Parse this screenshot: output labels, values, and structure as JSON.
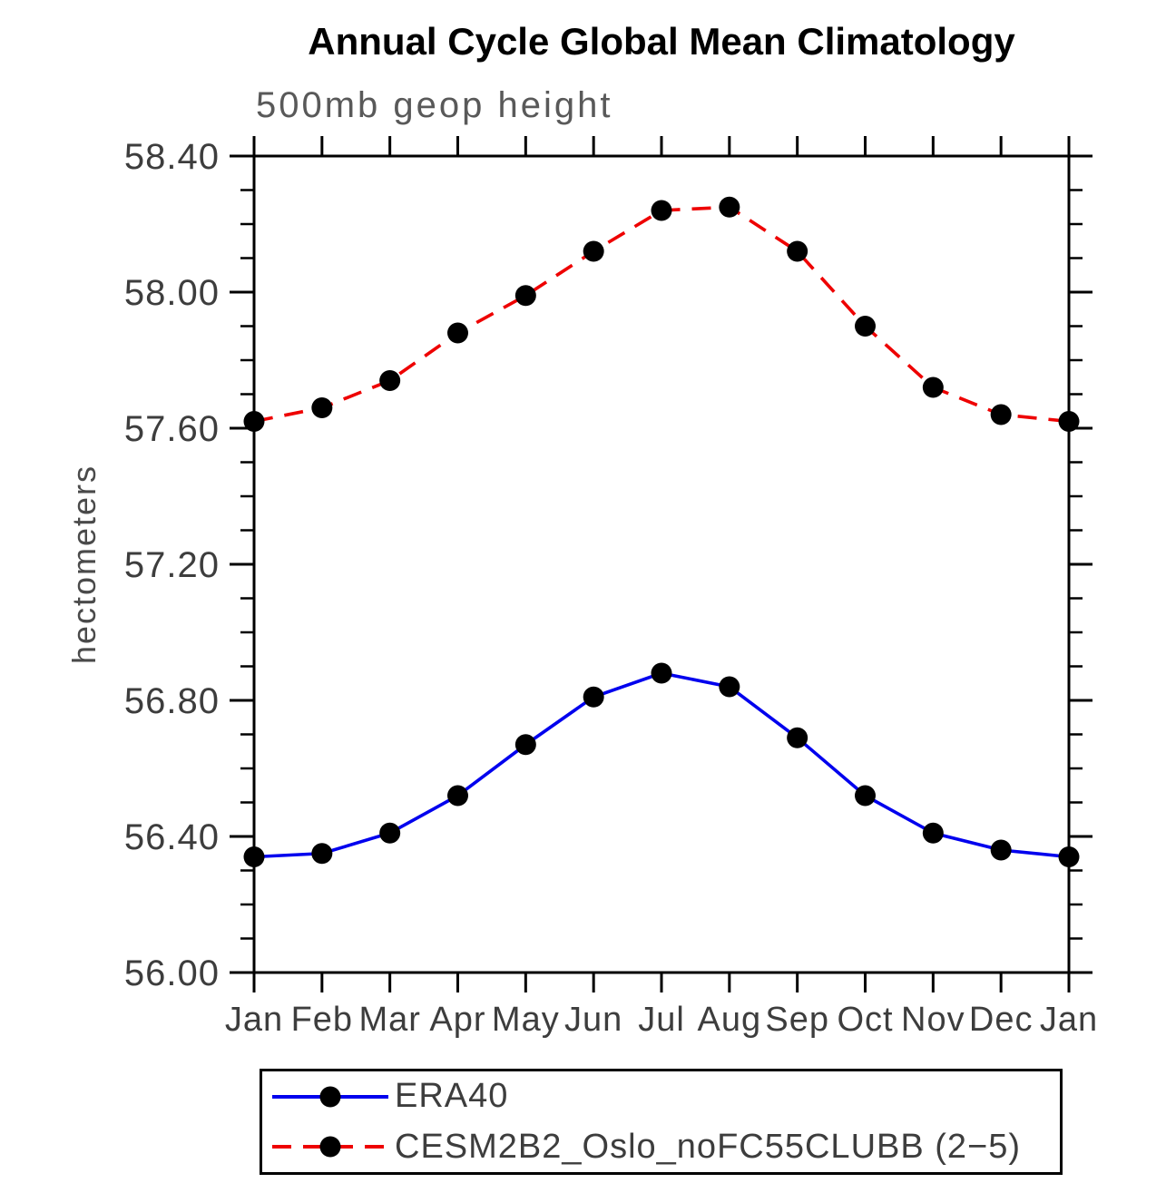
{
  "chart_data": {
    "type": "line",
    "title": "Annual Cycle Global Mean Climatology",
    "subtitle": "500mb geop height",
    "ylabel": "hectometers",
    "xlabel": "",
    "categories": [
      "Jan",
      "Feb",
      "Mar",
      "Apr",
      "May",
      "Jun",
      "Jul",
      "Aug",
      "Sep",
      "Oct",
      "Nov",
      "Dec",
      "Jan"
    ],
    "ylim": [
      56.0,
      58.4
    ],
    "ytick_major_interval": 0.4,
    "ytick_minor_interval": 0.1,
    "ytick_labels": [
      "56.00",
      "56.40",
      "56.80",
      "57.20",
      "57.60",
      "58.00",
      "58.40"
    ],
    "grid": "off",
    "legend_position": "bottom",
    "frame_color": "#000000",
    "tick_label_color": "#3d3d3d",
    "marker": "filled-circle",
    "marker_color": "#000000",
    "series": [
      {
        "name": "ERA40",
        "color": "#0000ee",
        "line_style": "solid",
        "values": [
          56.34,
          56.35,
          56.41,
          56.52,
          56.67,
          56.81,
          56.88,
          56.84,
          56.69,
          56.52,
          56.41,
          56.36,
          56.34
        ]
      },
      {
        "name": "CESM2B2_Oslo_noFC55CLUBB (2−5)",
        "color": "#ee0000",
        "line_style": "dashed",
        "values": [
          57.62,
          57.66,
          57.74,
          57.88,
          57.99,
          58.12,
          58.24,
          58.25,
          58.12,
          57.9,
          57.72,
          57.64,
          57.62
        ]
      }
    ]
  }
}
